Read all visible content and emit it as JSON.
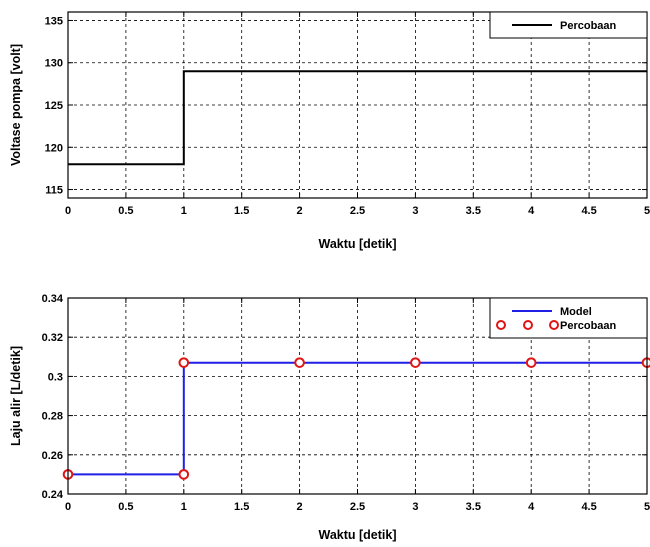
{
  "chart_data": [
    {
      "type": "line",
      "xlabel": "Waktu [detik]",
      "ylabel": "Voltase pompa [volt]",
      "xlim": [
        0,
        5
      ],
      "ylim": [
        114,
        136
      ],
      "xticks": [
        0,
        0.5,
        1,
        1.5,
        2,
        2.5,
        3,
        3.5,
        4,
        4.5,
        5
      ],
      "xtick_labels": [
        "0",
        "0.5",
        "1",
        "1.5",
        "2",
        "2.5",
        "3",
        "3.5",
        "4",
        "4.5",
        "5"
      ],
      "yticks": [
        115,
        120,
        125,
        130,
        135
      ],
      "ytick_labels": [
        "115",
        "120",
        "125",
        "130",
        "135"
      ],
      "grid": true,
      "legend_position": "top-right",
      "series": [
        {
          "name": "Percobaan",
          "color": "#000000",
          "line": true,
          "markers": false,
          "x": [
            0,
            1,
            1,
            5
          ],
          "y": [
            118,
            118,
            129,
            129
          ]
        }
      ]
    },
    {
      "type": "line",
      "xlabel": "Waktu [detik]",
      "ylabel": "Laju alir [L/detik]",
      "xlim": [
        0,
        5
      ],
      "ylim": [
        0.24,
        0.34
      ],
      "xticks": [
        0,
        0.5,
        1,
        1.5,
        2,
        2.5,
        3,
        3.5,
        4,
        4.5,
        5
      ],
      "xtick_labels": [
        "0",
        "0.5",
        "1",
        "1.5",
        "2",
        "2.5",
        "3",
        "3.5",
        "4",
        "4.5",
        "5"
      ],
      "yticks": [
        0.24,
        0.26,
        0.28,
        0.3,
        0.32,
        0.34
      ],
      "ytick_labels": [
        "0.24",
        "0.26",
        "0.28",
        "0.3",
        "0.32",
        "0.34"
      ],
      "grid": true,
      "legend_position": "top-right",
      "series": [
        {
          "name": "Model",
          "color": "#1f1fe6",
          "line": true,
          "markers": false,
          "x": [
            0,
            1,
            1,
            5
          ],
          "y": [
            0.25,
            0.25,
            0.307,
            0.307
          ]
        },
        {
          "name": "Percobaan",
          "color": "#e01515",
          "line": false,
          "markers": true,
          "marker": "circle",
          "x": [
            0,
            1,
            1,
            2,
            3,
            4,
            5
          ],
          "y": [
            0.25,
            0.25,
            0.307,
            0.307,
            0.307,
            0.307,
            0.307
          ]
        }
      ]
    }
  ]
}
